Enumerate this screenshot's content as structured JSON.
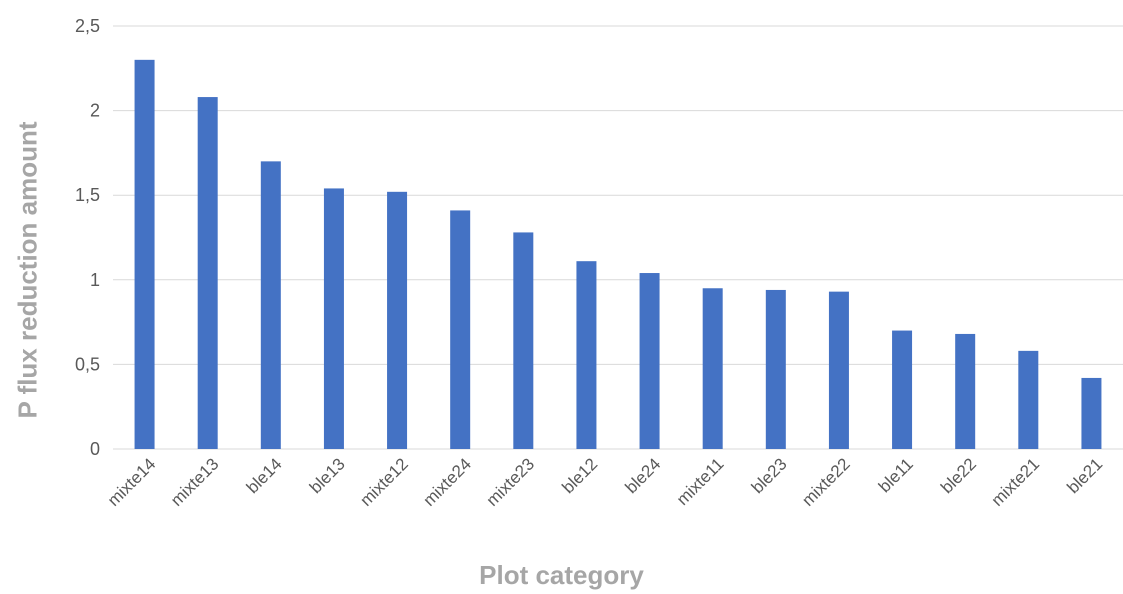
{
  "chart_data": {
    "type": "bar",
    "title": "",
    "xlabel": "Plot category",
    "ylabel": "P flux reduction amount",
    "categories": [
      "mixte14",
      "mixte13",
      "ble14",
      "ble13",
      "mixte12",
      "mixte24",
      "mixte23",
      "ble12",
      "ble24",
      "mixte11",
      "ble23",
      "mixte22",
      "ble11",
      "ble22",
      "mixte21",
      "ble21"
    ],
    "values": [
      2.3,
      2.08,
      1.7,
      1.54,
      1.52,
      1.41,
      1.28,
      1.11,
      1.04,
      0.95,
      0.94,
      0.93,
      0.7,
      0.68,
      0.58,
      0.42
    ],
    "ylim": [
      0,
      2.5
    ],
    "yticks": [
      0,
      0.5,
      1,
      1.5,
      2,
      2.5
    ],
    "ytick_labels": [
      "0",
      "0,5",
      "1",
      "1,5",
      "2",
      "2,5"
    ],
    "grid": true,
    "legend": "none",
    "bar_color": "#4472c4",
    "grid_color": "#d9d9d9",
    "tick_label_color": "#595959",
    "axis_title_color": "#a6a6a6"
  }
}
